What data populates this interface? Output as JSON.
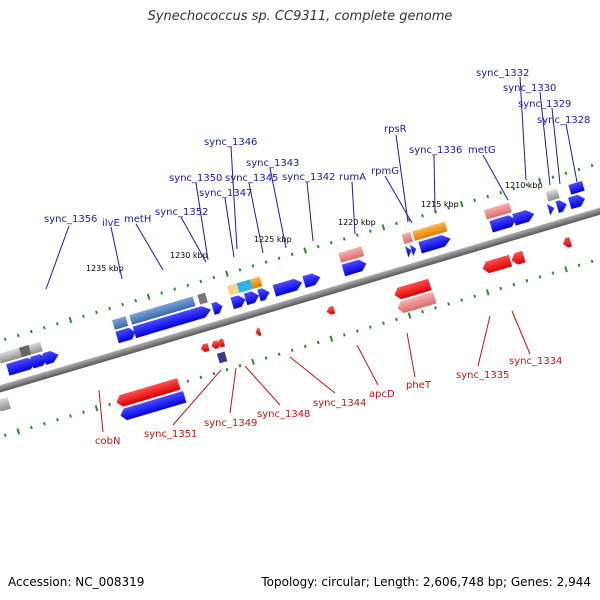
{
  "title": "Synechococcus sp. CC9311, complete genome",
  "footer": {
    "accession": "Accession: NC_008319",
    "summary": "Topology: circular; Length: 2,606,748 bp; Genes: 2,944"
  },
  "colors": {
    "forward_label": "#1a1ab0",
    "reverse_label": "#cc1111",
    "backbone": "#8a8a8a",
    "tick": "#2e8b2e"
  },
  "scale_labels": [
    "1210 kbp",
    "1215 kbp",
    "1220 kbp",
    "1225 kbp",
    "1230 kbp",
    "1235 kbp"
  ],
  "forward_genes": [
    "sync_1332",
    "sync_1330",
    "sync_1329",
    "sync_1328",
    "rpsR",
    "sync_1336",
    "metG",
    "sync_1346",
    "sync_1343",
    "sync_1350",
    "sync_1345",
    "sync_1342",
    "rumA",
    "rpmG",
    "sync_1347",
    "sync_1352",
    "sync_1356",
    "ilvE",
    "metH"
  ],
  "reverse_genes": [
    "cobN",
    "sync_1351",
    "sync_1349",
    "sync_1348",
    "sync_1344",
    "apcD",
    "pheT",
    "sync_1335",
    "sync_1334"
  ]
}
